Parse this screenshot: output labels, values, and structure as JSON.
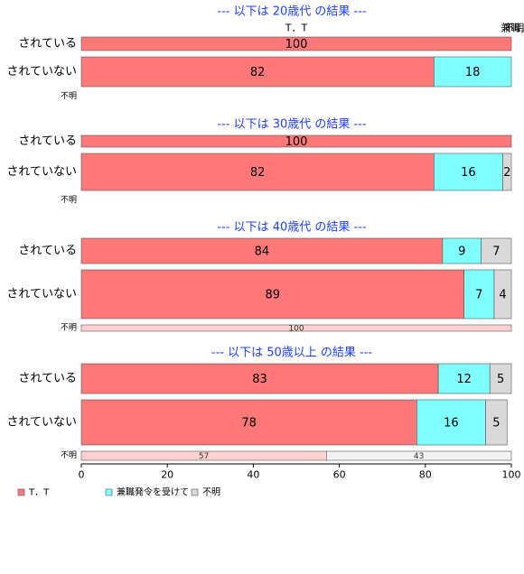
{
  "chart_data": {
    "type": "bar",
    "orientation": "horizontal",
    "stacked": true,
    "xlim": [
      0,
      100
    ],
    "x_ticks": [
      "0",
      "20",
      "40",
      "60",
      "80",
      "100"
    ],
    "legend_placement": "bottom-left",
    "series": [
      {
        "name": "T．T",
        "color": "#ff7878"
      },
      {
        "name": "兼職発令を受けて",
        "color": "#7fffff"
      },
      {
        "name": "不明",
        "color": "#d9d9d9"
      }
    ],
    "panels": [
      {
        "title": "--- 以下は 20歳代 の結果 ---",
        "top_labels": [
          "T．T",
          "兼職.",
          "不明."
        ],
        "rows": [
          {
            "label": "されている",
            "values": [
              100,
              0,
              0
            ],
            "shown": [
              "100",
              "",
              ""
            ]
          },
          {
            "label": "されていない",
            "values": [
              82,
              18,
              0
            ],
            "shown": [
              "82",
              "18",
              ""
            ]
          },
          {
            "label": "不明",
            "values": [],
            "shown": []
          }
        ]
      },
      {
        "title": "--- 以下は 30歳代 の結果 ---",
        "rows": [
          {
            "label": "されている",
            "values": [
              100,
              0,
              0
            ],
            "shown": [
              "100",
              "",
              ""
            ]
          },
          {
            "label": "されていない",
            "values": [
              82,
              16,
              2
            ],
            "shown": [
              "82",
              "16",
              "2"
            ]
          },
          {
            "label": "不明",
            "values": [],
            "shown": []
          }
        ]
      },
      {
        "title": "--- 以下は 40歳代 の結果 ---",
        "rows": [
          {
            "label": "されている",
            "values": [
              84,
              9,
              7
            ],
            "shown": [
              "84",
              "9",
              "7"
            ]
          },
          {
            "label": "されていない",
            "values": [
              89,
              7,
              4
            ],
            "shown": [
              "89",
              "7",
              "4"
            ]
          },
          {
            "label": "不明",
            "values": [
              100,
              0,
              0
            ],
            "shown": [
              "100",
              "",
              ""
            ]
          }
        ]
      },
      {
        "title": "--- 以下は 50歳以上 の結果 ---",
        "rows": [
          {
            "label": "されている",
            "values": [
              83,
              12,
              5
            ],
            "shown": [
              "83",
              "12",
              "5"
            ]
          },
          {
            "label": "されていない",
            "values": [
              78,
              16,
              5
            ],
            "shown": [
              "78",
              "16",
              "5"
            ]
          },
          {
            "label": "不明",
            "values": [
              57,
              0,
              43
            ],
            "shown": [
              "57",
              "",
              "43"
            ]
          }
        ]
      }
    ]
  }
}
